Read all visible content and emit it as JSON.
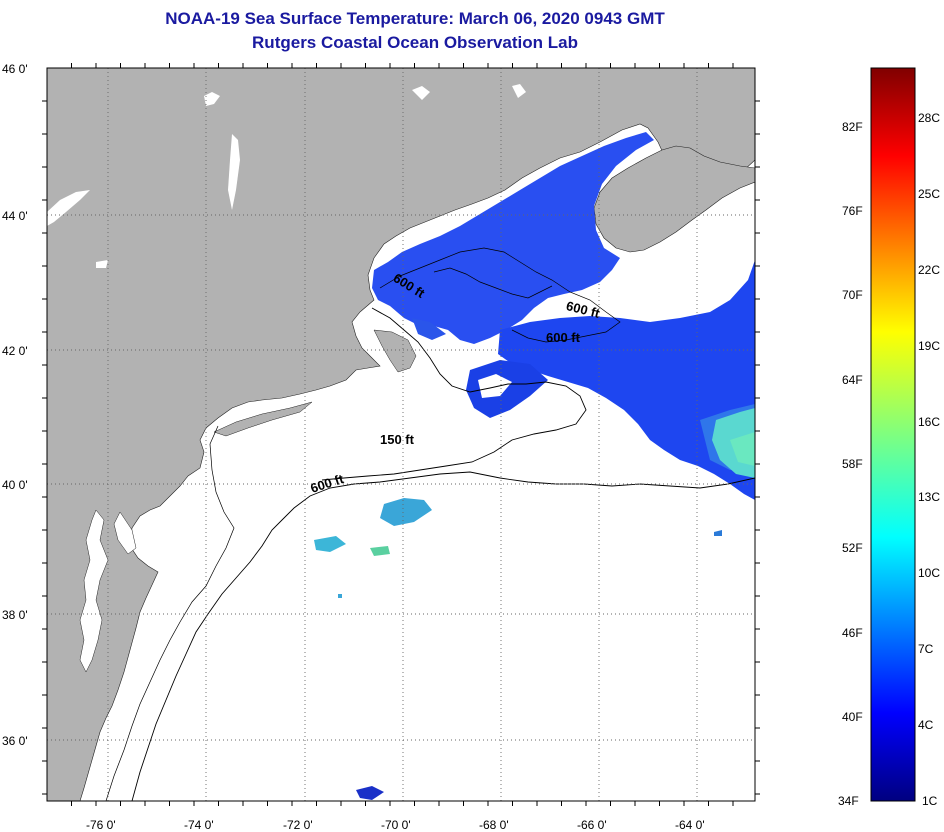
{
  "header": {
    "title": "NOAA-19 Sea Surface Temperature:  March 06, 2020 0943 GMT",
    "subtitle": "Rutgers Coastal Ocean Observation Lab"
  },
  "map": {
    "lat_labels": [
      "46 0'",
      "44 0'",
      "42 0'",
      "40 0'",
      "38 0'",
      "36 0'"
    ],
    "lon_labels": [
      "-76 0'",
      "-74 0'",
      "-72 0'",
      "-70 0'",
      "-68 0'",
      "-66 0'",
      "-64 0'"
    ],
    "contours": [
      "600 ft",
      "600 ft",
      "600 ft",
      "150 ft",
      "600 ft"
    ],
    "colors": {
      "land": "#b2b2b2",
      "ocean": "#ffffff",
      "lines": "#000000"
    }
  },
  "colorbar": {
    "fahrenheit": [
      "82F",
      "76F",
      "70F",
      "64F",
      "58F",
      "52F",
      "46F",
      "40F",
      "34F"
    ],
    "celsius": [
      "28C",
      "25C",
      "22C",
      "19C",
      "16C",
      "13C",
      "10C",
      "7C",
      "4C",
      "1C"
    ]
  }
}
